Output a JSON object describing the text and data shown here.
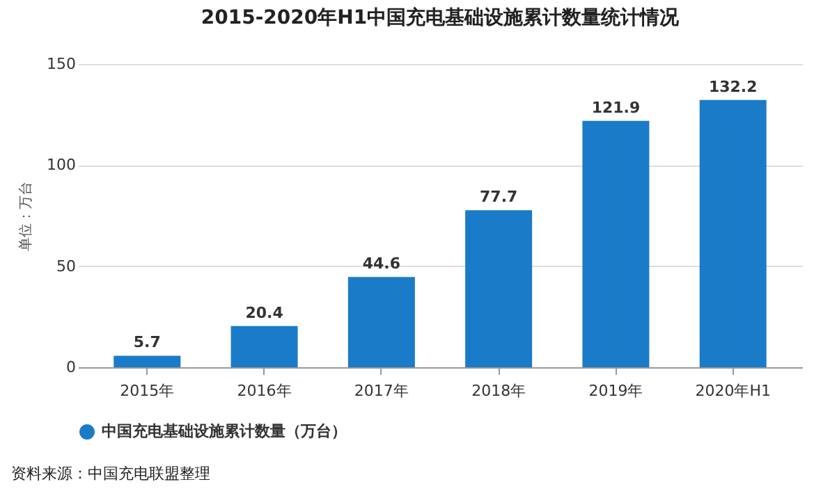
{
  "chart_data": {
    "type": "bar",
    "title": "2015-2020年H1中国充电基础设施累计数量统计情况",
    "ylabel": "单位：万台",
    "categories": [
      "2015年",
      "2016年",
      "2017年",
      "2018年",
      "2019年",
      "2020年H1"
    ],
    "series": [
      {
        "name": "中国充电基础设施累计数量（万台）",
        "color": "#1a7bc9",
        "values": [
          5.7,
          20.4,
          44.6,
          77.7,
          121.9,
          132.2
        ]
      }
    ],
    "ylim": [
      0,
      150
    ],
    "yticks": [
      0,
      50,
      100,
      150
    ],
    "grid": "y",
    "legend": "bottom",
    "data_labels": true,
    "annotations": [
      "资料来源：中国充电联盟整理"
    ]
  }
}
